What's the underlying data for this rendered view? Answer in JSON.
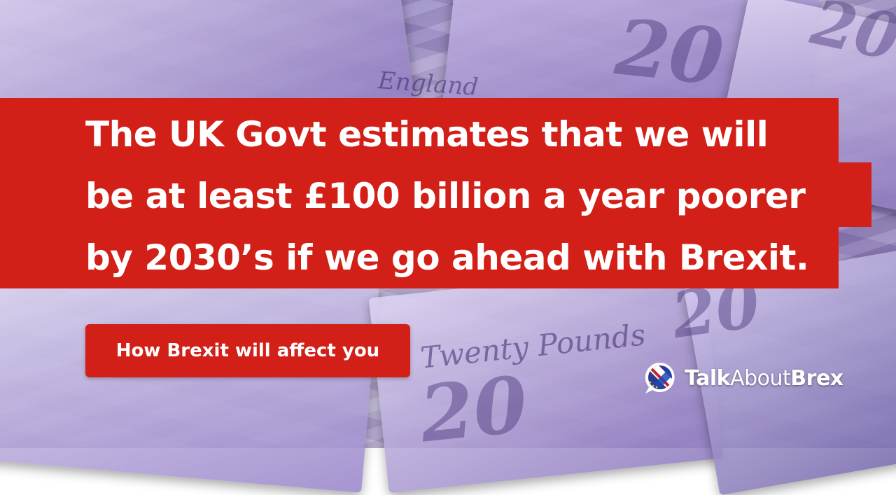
{
  "headline": {
    "lines": [
      "The UK Govt estimates that we will",
      "be at least £100 billion a year poorer",
      "by 2030’s if we go ahead with Brexit."
    ]
  },
  "cta": {
    "label": "How Brexit will affect you"
  },
  "brand": {
    "part1": "Talk",
    "part2": "About",
    "part3": "Brex",
    "icon": "uk-eu-flag-speech-bubble-icon"
  },
  "background": {
    "icon": "twenty-pound-banknotes-photo",
    "notes_text": [
      "20",
      "20",
      "20",
      "20",
      "England",
      "Twenty Pounds"
    ]
  },
  "colors": {
    "accent_red": "#d21f17",
    "text": "#ffffff"
  }
}
